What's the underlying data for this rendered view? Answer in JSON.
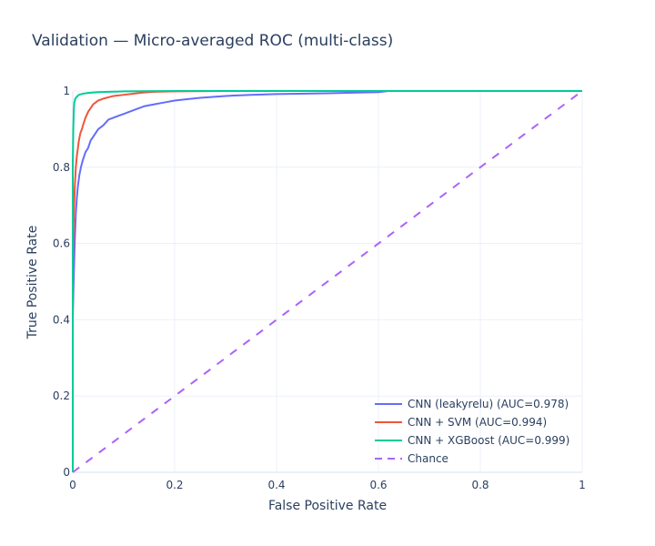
{
  "chart_data": {
    "type": "line",
    "title": "Validation — Micro-averaged ROC (multi-class)",
    "xlabel": "False Positive Rate",
    "ylabel": "True Positive Rate",
    "xlim": [
      0,
      1
    ],
    "ylim": [
      0,
      1
    ],
    "grid": true,
    "legend_position": "bottom-right",
    "x_ticks": [
      {
        "value": 0,
        "label": "0"
      },
      {
        "value": 0.2,
        "label": "0.2"
      },
      {
        "value": 0.4,
        "label": "0.4"
      },
      {
        "value": 0.6,
        "label": "0.6"
      },
      {
        "value": 0.8,
        "label": "0.8"
      },
      {
        "value": 1,
        "label": "1"
      }
    ],
    "y_ticks": [
      {
        "value": 0,
        "label": "0"
      },
      {
        "value": 0.2,
        "label": "0.2"
      },
      {
        "value": 0.4,
        "label": "0.4"
      },
      {
        "value": 0.6,
        "label": "0.6"
      },
      {
        "value": 0.8,
        "label": "0.8"
      },
      {
        "value": 1,
        "label": "1"
      }
    ],
    "series": [
      {
        "name": "CNN (leakyrelu) (AUC=0.978)",
        "color": "#636efa",
        "dash": "solid",
        "x": [
          0,
          0,
          0.002,
          0.004,
          0.006,
          0.008,
          0.01,
          0.013,
          0.016,
          0.02,
          0.025,
          0.03,
          0.035,
          0.04,
          0.05,
          0.06,
          0.07,
          0.08,
          0.09,
          0.1,
          0.11,
          0.12,
          0.14,
          0.16,
          0.18,
          0.2,
          0.22,
          0.25,
          0.3,
          0.35,
          0.4,
          0.5,
          0.6,
          0.62,
          0.7,
          0.8,
          0.9,
          1
        ],
        "y": [
          0,
          0.4,
          0.52,
          0.61,
          0.68,
          0.72,
          0.75,
          0.78,
          0.8,
          0.82,
          0.84,
          0.85,
          0.87,
          0.88,
          0.9,
          0.91,
          0.925,
          0.93,
          0.935,
          0.94,
          0.945,
          0.95,
          0.96,
          0.965,
          0.97,
          0.975,
          0.978,
          0.982,
          0.987,
          0.99,
          0.992,
          0.994,
          0.997,
          1,
          1,
          1,
          1,
          1
        ]
      },
      {
        "name": "CNN + SVM (AUC=0.994)",
        "color": "#ef553b",
        "dash": "solid",
        "x": [
          0,
          0,
          0.002,
          0.004,
          0.006,
          0.008,
          0.01,
          0.012,
          0.015,
          0.018,
          0.02,
          0.025,
          0.03,
          0.035,
          0.04,
          0.05,
          0.06,
          0.08,
          0.1,
          0.12,
          0.14,
          0.16,
          0.2,
          0.3,
          0.5,
          1
        ],
        "y": [
          0,
          0.55,
          0.68,
          0.75,
          0.8,
          0.83,
          0.85,
          0.87,
          0.89,
          0.9,
          0.91,
          0.93,
          0.945,
          0.955,
          0.965,
          0.975,
          0.98,
          0.987,
          0.99,
          0.993,
          0.996,
          0.998,
          0.999,
          1,
          1,
          1
        ]
      },
      {
        "name": "CNN + XGBoost (AUC=0.999)",
        "color": "#00cc96",
        "dash": "solid",
        "x": [
          0,
          0,
          0.001,
          0.002,
          0.003,
          0.005,
          0.008,
          0.012,
          0.02,
          0.03,
          0.05,
          0.1,
          0.2,
          0.3,
          1
        ],
        "y": [
          0,
          0.8,
          0.9,
          0.95,
          0.97,
          0.98,
          0.985,
          0.99,
          0.993,
          0.995,
          0.997,
          0.999,
          1,
          1,
          1
        ]
      },
      {
        "name": "Chance",
        "color": "#ab63fa",
        "dash": "dash",
        "x": [
          0,
          1
        ],
        "y": [
          0,
          1
        ]
      }
    ]
  }
}
